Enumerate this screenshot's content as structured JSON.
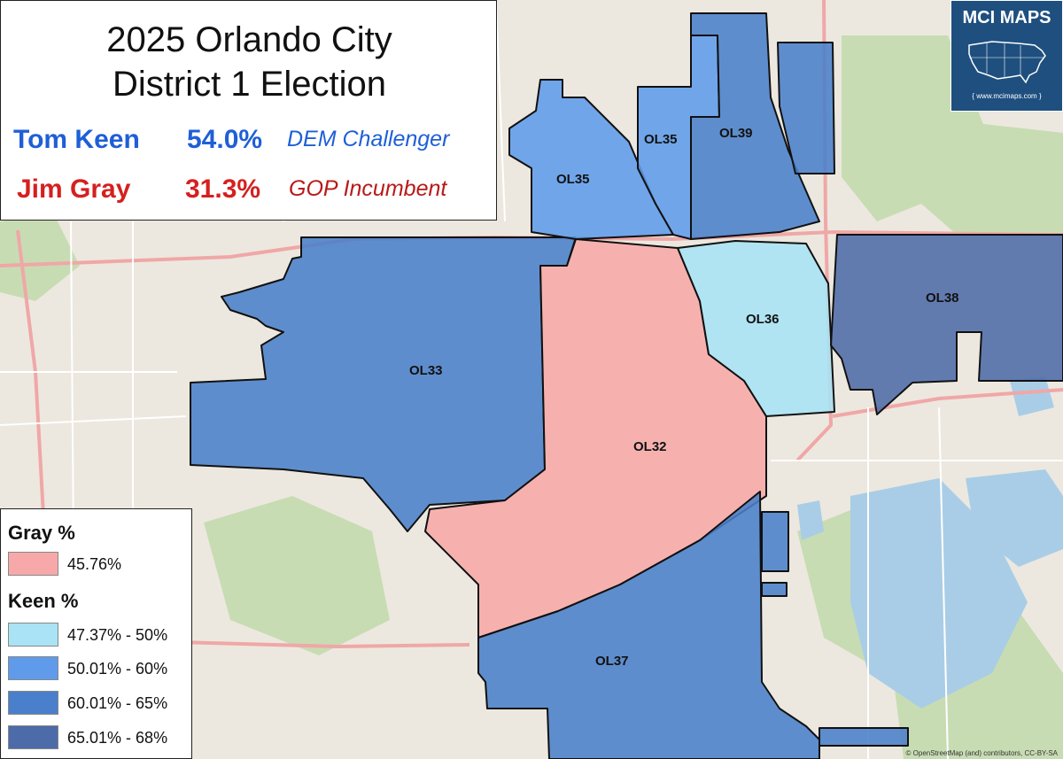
{
  "title": {
    "line1": "2025 Orlando City",
    "line2": "District 1 Election"
  },
  "candidates": [
    {
      "name": "Tom Keen",
      "pct": "54.0%",
      "role": "DEM Challenger",
      "color": "#1f5fd6"
    },
    {
      "name": "Jim Gray",
      "pct": "31.3%",
      "role": "GOP Incumbent",
      "color": "#d61f1f"
    }
  ],
  "legend": {
    "gray_heading": "Gray  %",
    "gray_items": [
      {
        "label": "45.76%",
        "color": "#f7a9a9"
      }
    ],
    "keen_heading": "Keen   %",
    "keen_items": [
      {
        "label": "47.37% - 50%",
        "color": "#a9e3f5"
      },
      {
        "label": "50.01% - 60%",
        "color": "#5f9bea"
      },
      {
        "label": "60.01% - 65%",
        "color": "#4a7fcb"
      },
      {
        "label": "65.01% - 68%",
        "color": "#4e6ba9"
      }
    ]
  },
  "districts": [
    {
      "id": "OL33",
      "label": "OL33",
      "winner": "Keen",
      "color": "#4a7fcb"
    },
    {
      "id": "OL32",
      "label": "OL32",
      "winner": "Gray",
      "color": "#f7a9a9"
    },
    {
      "id": "OL35a",
      "label": "OL35",
      "winner": "Keen",
      "color": "#5f9bea"
    },
    {
      "id": "OL35b",
      "label": "OL35",
      "winner": "Keen",
      "color": "#5f9bea"
    },
    {
      "id": "OL39",
      "label": "OL39",
      "winner": "Keen",
      "color": "#4a7fcb"
    },
    {
      "id": "OL36",
      "label": "OL36",
      "winner": "Keen",
      "color": "#a9e3f5"
    },
    {
      "id": "OL38",
      "label": "OL38",
      "winner": "Keen",
      "color": "#4e6ba9"
    },
    {
      "id": "OL37",
      "label": "OL37",
      "winner": "Keen",
      "color": "#4a7fcb"
    }
  ],
  "logo": {
    "title": "MCI MAPS",
    "url": "{ www.mcimaps.com }",
    "bg": "#1e4f7f"
  },
  "credit": "© OpenStreetMap (and) contributors, CC-BY-SA"
}
